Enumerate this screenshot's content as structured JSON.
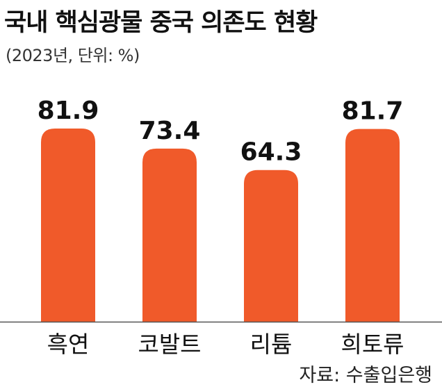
{
  "header": {
    "title": "국내 핵심광물 중국 의존도 현황",
    "subtitle": "(2023년, 단위: %)"
  },
  "footer": {
    "source": "자료: 수출입은행"
  },
  "colors": {
    "bar": "#f05a2a",
    "axis": "#555555",
    "text": "#111111"
  },
  "chart_data": {
    "type": "bar",
    "categories": [
      "흑연",
      "코발트",
      "리튬",
      "희토류"
    ],
    "values": [
      81.9,
      73.4,
      64.3,
      81.7
    ],
    "value_labels": [
      "81.9",
      "73.4",
      "64.3",
      "81.7"
    ],
    "title": "국내 핵심광물 중국 의존도 현황",
    "subtitle": "(2023년, 단위: %)",
    "xlabel": "",
    "ylabel": "",
    "ylim": [
      0,
      100
    ],
    "grid": false,
    "legend": "none"
  }
}
